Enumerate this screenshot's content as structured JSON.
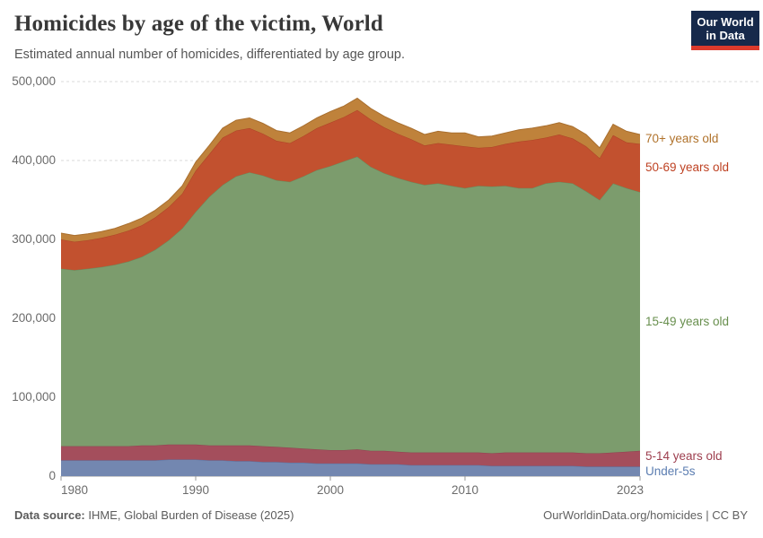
{
  "header": {
    "title": "Homicides by age of the victim, World",
    "subtitle": "Estimated annual number of homicides, differentiated by age group."
  },
  "logo": {
    "line1": "Our World",
    "line2": "in Data"
  },
  "footer": {
    "source_label": "Data source:",
    "source_text": " IHME, Global Burden of Disease (2025)",
    "right_text": "OurWorldinData.org/homicides | CC BY"
  },
  "chart_data": {
    "type": "area",
    "stacked": true,
    "title": "Homicides by age of the victim, World",
    "xlabel": "",
    "ylabel": "",
    "grid": true,
    "legend_position": "right-of-plot",
    "ylim": [
      0,
      500000
    ],
    "yticks": [
      0,
      100000,
      200000,
      300000,
      400000,
      500000
    ],
    "xticks": [
      1980,
      1990,
      2000,
      2010,
      2023
    ],
    "x": [
      1980,
      1981,
      1982,
      1983,
      1984,
      1985,
      1986,
      1987,
      1988,
      1989,
      1990,
      1991,
      1992,
      1993,
      1994,
      1995,
      1996,
      1997,
      1998,
      1999,
      2000,
      2001,
      2002,
      2003,
      2004,
      2005,
      2006,
      2007,
      2008,
      2009,
      2010,
      2011,
      2012,
      2013,
      2014,
      2015,
      2016,
      2017,
      2018,
      2019,
      2020,
      2021,
      2022,
      2023
    ],
    "series": [
      {
        "name": "Under-5s",
        "fill": "#7387B0",
        "stroke": "#5A72A0",
        "label_color": "#5B7DB1",
        "values": [
          20000,
          20000,
          20000,
          20000,
          20000,
          20000,
          20000,
          20000,
          21000,
          21000,
          21000,
          20000,
          20000,
          19000,
          19000,
          18000,
          18000,
          17000,
          17000,
          16000,
          16000,
          16000,
          16000,
          15000,
          15000,
          15000,
          14000,
          14000,
          14000,
          14000,
          14000,
          14000,
          13000,
          13000,
          13000,
          13000,
          13000,
          13000,
          13000,
          12000,
          12000,
          12000,
          12000,
          12000
        ]
      },
      {
        "name": "5-14 years old",
        "fill": "#A44E5C",
        "stroke": "#8F4250",
        "label_color": "#9D3E4E",
        "values": [
          18000,
          18000,
          18000,
          18000,
          18000,
          18000,
          19000,
          19000,
          19000,
          19000,
          19000,
          19000,
          19000,
          20000,
          20000,
          20000,
          19000,
          19000,
          18000,
          18000,
          17000,
          17000,
          18000,
          17000,
          17000,
          16000,
          16000,
          16000,
          16000,
          16000,
          16000,
          16000,
          16000,
          17000,
          17000,
          17000,
          17000,
          17000,
          17000,
          17000,
          17000,
          18000,
          19000,
          20000
        ]
      },
      {
        "name": "15-49 years old",
        "fill": "#7C9C6D",
        "stroke": "#69895B",
        "label_color": "#688F4E",
        "values": [
          225000,
          223000,
          225000,
          227000,
          230000,
          234000,
          239000,
          248000,
          259000,
          274000,
          295000,
          315000,
          330000,
          341000,
          346000,
          343000,
          338000,
          337000,
          345000,
          354000,
          360000,
          366000,
          371000,
          360000,
          352000,
          347000,
          343000,
          339000,
          341000,
          338000,
          335000,
          338000,
          338000,
          338000,
          335000,
          335000,
          341000,
          343000,
          341000,
          332000,
          321000,
          341000,
          334000,
          328000
        ]
      },
      {
        "name": "50-69 years old",
        "fill": "#C2512F",
        "stroke": "#AC4226",
        "label_color": "#BE4122",
        "values": [
          37000,
          36000,
          36000,
          37000,
          38000,
          39000,
          40000,
          41000,
          42000,
          44000,
          52000,
          54000,
          60000,
          58000,
          56000,
          53000,
          50000,
          49000,
          51000,
          53000,
          55000,
          56000,
          59000,
          60000,
          58000,
          56000,
          54000,
          50000,
          51000,
          52000,
          53000,
          48000,
          50000,
          53000,
          59000,
          61000,
          58000,
          60000,
          57000,
          57000,
          53000,
          61000,
          58000,
          61000
        ]
      },
      {
        "name": "70+ years old",
        "fill": "#BF823B",
        "stroke": "#A96F2F",
        "label_color": "#B0722B",
        "values": [
          8000,
          8000,
          8000,
          8000,
          8000,
          9000,
          9000,
          9000,
          9000,
          10000,
          11000,
          11000,
          12000,
          13000,
          13000,
          13000,
          13000,
          13000,
          13000,
          13000,
          14000,
          14000,
          15000,
          14000,
          14000,
          14000,
          14000,
          14000,
          15000,
          15000,
          17000,
          14000,
          14000,
          14000,
          15000,
          15000,
          15000,
          15000,
          15000,
          15000,
          13000,
          14000,
          14000,
          12000
        ]
      }
    ]
  }
}
